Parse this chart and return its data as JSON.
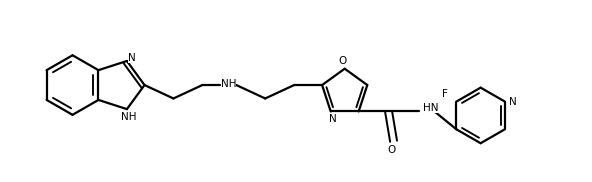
{
  "bg_color": "#ffffff",
  "line_color": "#000000",
  "line_width": 1.6,
  "figsize": [
    5.92,
    1.82
  ],
  "dpi": 100,
  "xlim": [
    0,
    592
  ],
  "ylim": [
    0,
    182
  ]
}
